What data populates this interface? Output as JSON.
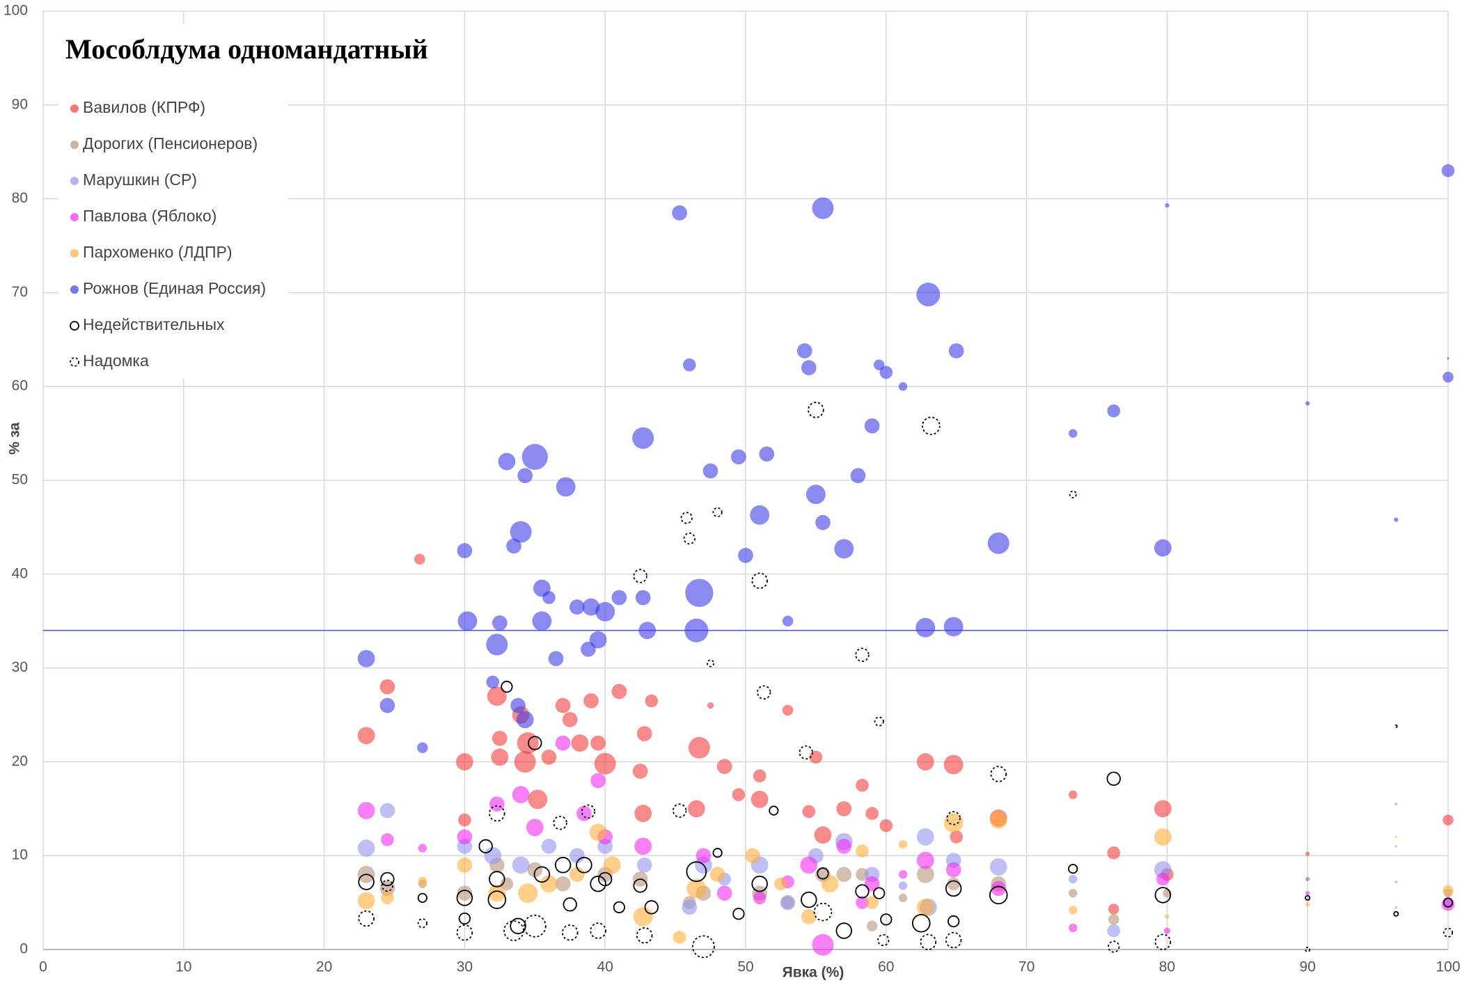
{
  "chart_data": {
    "type": "bubble",
    "title": "Мособлдума одномандатный",
    "x_label": "Явка (%)",
    "y_label": "% за",
    "xlim": [
      0,
      100
    ],
    "ylim": [
      0,
      100
    ],
    "xticks": [
      0,
      10,
      20,
      30,
      40,
      50,
      60,
      70,
      80,
      90,
      100
    ],
    "yticks": [
      0,
      10,
      20,
      30,
      40,
      50,
      60,
      70,
      80,
      90,
      100
    ],
    "grid": true,
    "legend": "upper left",
    "reference_line": {
      "y": 34,
      "color": "#4a4ae8"
    },
    "series": [
      {
        "name": "Вавилов (КПРФ)",
        "color": "#f23c3c",
        "marker": "filled",
        "x": [
          24.5,
          26.8,
          30,
          32.3,
          32.5,
          32.5,
          34,
          34.3,
          35.2,
          36,
          37,
          37.5,
          38.2,
          39,
          39.5,
          40,
          41,
          42.5,
          42.7,
          42.8,
          43.3,
          46.5,
          46.7,
          47.5,
          48.5,
          49.5,
          51,
          51,
          53,
          54.5,
          55,
          55.5,
          57,
          58.3,
          59,
          60,
          62.8,
          64.8,
          65,
          68,
          73.3,
          76.2,
          76.2,
          79.7,
          80,
          90,
          96.3,
          100,
          23,
          30,
          34.5
        ],
        "y": [
          28,
          41.6,
          20,
          27,
          22.5,
          20.5,
          25,
          20,
          16,
          20.5,
          26,
          24.5,
          22,
          26.5,
          22,
          19.8,
          27.5,
          19,
          14.5,
          23,
          26.5,
          15,
          21.5,
          26,
          19.5,
          16.5,
          18.5,
          16,
          25.5,
          14.7,
          20.5,
          12.2,
          15,
          17.5,
          14.5,
          13.2,
          20,
          19.7,
          12,
          14,
          16.5,
          10.3,
          4.3,
          15,
          8,
          10.2,
          15.5,
          13.8,
          22.8,
          13.8,
          22
        ],
        "sizes": [
          7,
          5,
          8,
          9,
          7,
          8,
          8,
          10,
          9,
          7,
          7,
          7,
          8,
          7,
          7,
          10,
          7,
          7,
          8,
          7,
          6,
          8,
          10,
          3,
          7,
          6,
          6,
          8,
          5,
          6,
          6,
          8,
          7,
          6,
          6,
          6,
          8,
          9,
          6,
          8,
          4,
          6,
          5,
          8,
          6,
          2,
          1,
          5,
          8,
          6,
          10
        ]
      },
      {
        "name": "Дорогих (Пенсионеров)",
        "color": "#b8927a",
        "marker": "filled",
        "x": [
          23,
          24.5,
          27,
          30,
          32.3,
          33,
          35,
          37,
          40,
          42.5,
          46,
          47,
          51,
          53,
          55.5,
          57,
          58.3,
          59,
          61.2,
          62.8,
          64.8,
          68,
          73.3,
          76.2,
          80,
          90,
          96.3,
          100
        ],
        "y": [
          8,
          6.5,
          7,
          6,
          9,
          7,
          8.5,
          7,
          8,
          7.5,
          5,
          6,
          6,
          5,
          8,
          8,
          8,
          2.5,
          5.5,
          8,
          7,
          7,
          6,
          3.2,
          6,
          7.5,
          11,
          6
        ],
        "sizes": [
          8,
          7,
          4,
          7,
          7,
          6,
          7,
          7,
          7,
          7,
          6,
          7,
          7,
          6,
          7,
          7,
          6,
          5,
          4,
          8,
          6,
          7,
          4,
          5,
          4,
          2,
          1,
          4
        ]
      },
      {
        "name": "Марушкин (СР)",
        "color": "#9494ee",
        "marker": "filled",
        "x": [
          23,
          24.5,
          30,
          32,
          34,
          36,
          38,
          40,
          42.8,
          46,
          47,
          48.5,
          51,
          53,
          55,
          57,
          59,
          61.2,
          62.8,
          63,
          64.8,
          68,
          73.3,
          76.2,
          79.7,
          90,
          96.3,
          100
        ],
        "y": [
          10.8,
          14.8,
          11,
          10,
          9,
          11,
          10,
          11,
          9,
          4.5,
          9,
          7.5,
          9,
          5,
          10,
          11.5,
          8,
          6.8,
          12,
          4.5,
          9.5,
          8.8,
          7.5,
          2,
          8.5,
          7.5,
          4.5,
          5
        ],
        "sizes": [
          8,
          7,
          7,
          8,
          8,
          7,
          7,
          7,
          7,
          7,
          8,
          6,
          8,
          7,
          7,
          8,
          7,
          4,
          8,
          8,
          7,
          8,
          4,
          6,
          8,
          2,
          1,
          5
        ]
      },
      {
        "name": "Павлова (Яблоко)",
        "color": "#f22cf2",
        "marker": "filled",
        "x": [
          23,
          24.5,
          27,
          30,
          32.3,
          34,
          35,
          37,
          38.5,
          39.5,
          40,
          42.7,
          47,
          48.5,
          51,
          53,
          54.5,
          55.5,
          57,
          58.3,
          59,
          61.2,
          62.8,
          64.8,
          68,
          73.3,
          79.7,
          80,
          90,
          96.3,
          100
        ],
        "y": [
          14.8,
          11.7,
          10.8,
          12,
          15.5,
          16.5,
          13,
          22,
          14.5,
          18,
          12,
          11,
          10,
          6,
          5.5,
          7.2,
          9,
          0.5,
          11,
          5,
          7,
          8,
          9.5,
          8.5,
          6.5,
          2.3,
          7.5,
          2,
          6,
          7.2,
          4.8
        ],
        "sizes": [
          8,
          6,
          4,
          7,
          7,
          8,
          8,
          7,
          7,
          7,
          7,
          8,
          7,
          7,
          6,
          6,
          8,
          10,
          7,
          6,
          7,
          4,
          8,
          7,
          7,
          4,
          6,
          3,
          2,
          1,
          6
        ]
      },
      {
        "name": "Пархоменко (ЛДПР)",
        "color": "#ffae3a",
        "marker": "filled",
        "x": [
          23,
          24.5,
          27,
          30,
          32.3,
          34.5,
          36,
          38,
          39.5,
          40.5,
          42.7,
          45.3,
          46.5,
          48,
          50.5,
          52.5,
          54.5,
          56,
          58.3,
          59,
          61.2,
          62.8,
          64.8,
          68,
          73.3,
          79.7,
          80,
          90,
          96.3,
          100
        ],
        "y": [
          5.2,
          5.5,
          7.3,
          9,
          6,
          6,
          7,
          8,
          12.5,
          9,
          3.5,
          1.3,
          6.5,
          8,
          10,
          7,
          3.5,
          7,
          10.5,
          5,
          11.2,
          4.5,
          13.5,
          13.8,
          4.2,
          12,
          3.5,
          4.8,
          12,
          6.3
        ],
        "sizes": [
          8,
          6,
          4,
          7,
          8,
          9,
          8,
          7,
          8,
          8,
          9,
          6,
          9,
          7,
          7,
          6,
          7,
          8,
          6,
          6,
          4,
          8,
          9,
          8,
          4,
          8,
          2,
          2,
          1,
          5
        ]
      },
      {
        "name": "Рожнов (Единая Россия)",
        "color": "#3c3ce8",
        "marker": "filled",
        "x": [
          23,
          24.5,
          27,
          30,
          30.2,
          32.3,
          32.5,
          33,
          33.5,
          34,
          34.3,
          35,
          35.5,
          36,
          37.2,
          38,
          39,
          39.5,
          40,
          41,
          42.7,
          42.7,
          43,
          45.3,
          46,
          46.7,
          46.5,
          47.5,
          49.5,
          50,
          51,
          51.5,
          53,
          54.2,
          54.5,
          55,
          55.5,
          55.5,
          57,
          58,
          59,
          59.5,
          60,
          61.2,
          62.8,
          63,
          64.8,
          65,
          68,
          73.3,
          76.2,
          79.7,
          80,
          90,
          96.3,
          100,
          100,
          100,
          33.8,
          34.3,
          38.8,
          35.5,
          36.5,
          32
        ],
        "y": [
          31,
          26,
          21.5,
          42.5,
          35,
          32.5,
          34.8,
          52,
          43,
          44.5,
          50.5,
          52.5,
          38.5,
          37.5,
          49.3,
          36.5,
          36.5,
          33,
          36,
          37.5,
          54.5,
          37.5,
          34,
          78.5,
          62.3,
          38,
          34,
          51,
          52.5,
          42,
          46.3,
          52.8,
          35,
          63.8,
          62,
          48.5,
          79,
          45.5,
          42.7,
          50.5,
          55.8,
          62.3,
          61.5,
          60,
          34.3,
          69.8,
          34.4,
          63.8,
          43.3,
          55,
          57.4,
          42.8,
          79.3,
          58.2,
          45.8,
          83,
          61,
          63,
          26,
          24.5,
          32,
          35,
          31,
          28.5
        ],
        "sizes": [
          8,
          7,
          5,
          7,
          9,
          10,
          7,
          8,
          7,
          10,
          7,
          12,
          8,
          6,
          9,
          7,
          8,
          8,
          9,
          7,
          10,
          7,
          8,
          7,
          6,
          13,
          11,
          7,
          7,
          7,
          9,
          7,
          5,
          7,
          7,
          9,
          10,
          7,
          9,
          7,
          7,
          5,
          6,
          4,
          9,
          11,
          9,
          7,
          10,
          4,
          6,
          8,
          2,
          2,
          2,
          6,
          5,
          1,
          7,
          8,
          7,
          9,
          7,
          6
        ]
      },
      {
        "name": "Недействительных",
        "color": "#000000",
        "marker": "open",
        "x": [
          23,
          24.5,
          27,
          30,
          30,
          31.5,
          32.3,
          32.3,
          33,
          33.8,
          35,
          35.5,
          37,
          37.5,
          38.5,
          39.5,
          40,
          41,
          42.5,
          43.3,
          46.5,
          48,
          49.5,
          51,
          52,
          54.5,
          55.5,
          57,
          58.3,
          59.5,
          60,
          62.5,
          64.8,
          64.8,
          68,
          73.3,
          76.2,
          79.7,
          90,
          96.3,
          100
        ],
        "y": [
          7.2,
          7.5,
          5.5,
          5.5,
          3.3,
          11,
          7.5,
          5.3,
          28,
          2.5,
          22,
          8,
          9,
          4.8,
          9,
          7,
          7.5,
          4.5,
          6.8,
          4.5,
          8.3,
          10.3,
          3.8,
          7,
          14.8,
          5.3,
          8.1,
          2,
          6.2,
          6,
          3.2,
          2.8,
          3,
          6.5,
          5.8,
          8.6,
          18.2,
          5.8,
          5.5,
          3.8,
          5
        ],
        "sizes": [
          7,
          6,
          4,
          7,
          5,
          6,
          7,
          8,
          5,
          7,
          6,
          7,
          7,
          6,
          7,
          7,
          6,
          5,
          6,
          6,
          9,
          4,
          5,
          7,
          4,
          7,
          5,
          7,
          6,
          5,
          5,
          8,
          5,
          7,
          8,
          4,
          6,
          7,
          2,
          2,
          4
        ]
      },
      {
        "name": "Надомка",
        "color": "#000000",
        "marker": "dashed",
        "x": [
          23,
          24.5,
          27,
          30,
          32.3,
          33.5,
          35,
          36.8,
          37.5,
          38.8,
          39.5,
          42.5,
          42.8,
          45.3,
          45.8,
          46,
          47,
          48,
          47.5,
          51,
          51.3,
          54.3,
          55,
          55.5,
          58.3,
          59.5,
          59.8,
          63.2,
          63,
          64.8,
          64.8,
          68,
          73.3,
          76.2,
          79.7,
          90,
          96.3,
          100
        ],
        "y": [
          3.3,
          6.8,
          2.8,
          1.8,
          14.5,
          2,
          2.5,
          13.5,
          1.8,
          14.7,
          2,
          39.8,
          1.5,
          14.8,
          46,
          43.8,
          0.3,
          46.6,
          30.5,
          39.3,
          27.4,
          21,
          57.5,
          4,
          31.4,
          24.3,
          1,
          55.8,
          0.8,
          14,
          1,
          18.7,
          48.5,
          0.3,
          0.8,
          0,
          23.8,
          1.8
        ],
        "sizes": [
          7,
          5,
          4,
          7,
          7,
          9,
          10,
          6,
          7,
          6,
          7,
          6,
          7,
          6,
          5,
          5,
          10,
          4,
          3,
          7,
          6,
          6,
          7,
          8,
          6,
          4,
          5,
          8,
          7,
          6,
          7,
          7,
          3,
          5,
          7,
          2,
          1,
          4
        ]
      }
    ]
  }
}
